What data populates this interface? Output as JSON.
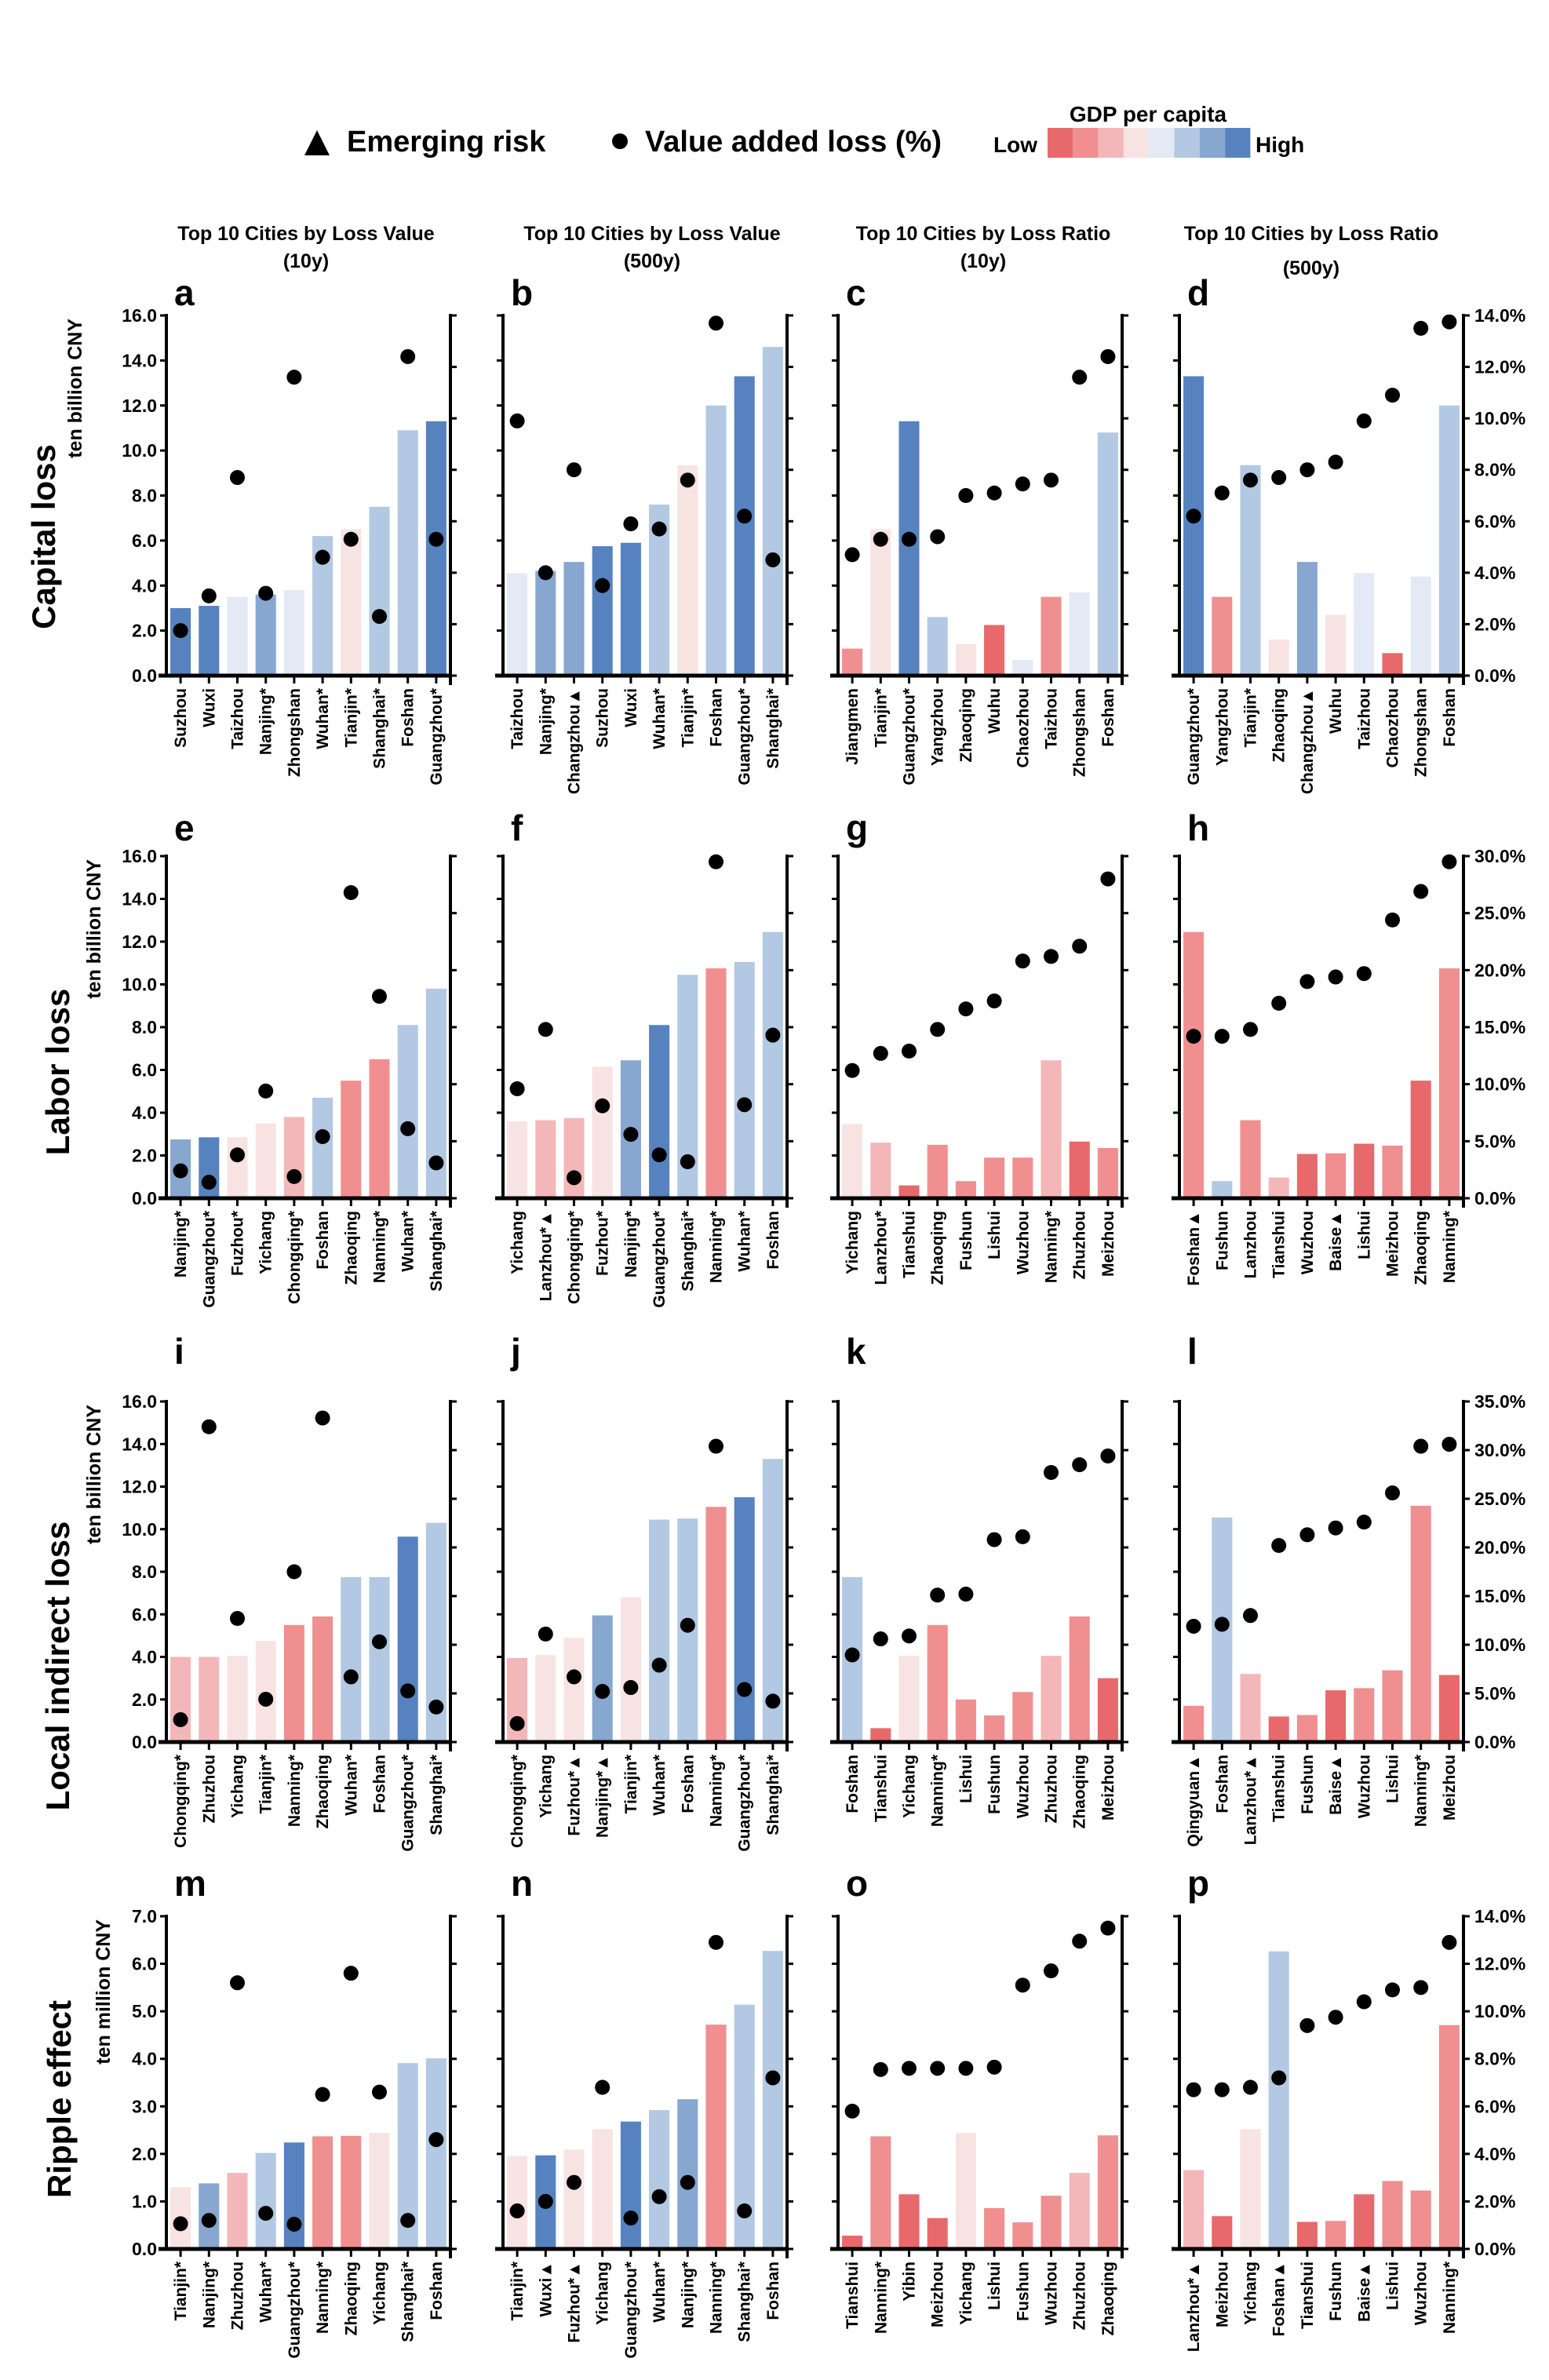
{
  "legend": {
    "emerging_risk_label": "Emerging risk",
    "emerging_risk_symbol": "▲",
    "dot_label": "Value added loss (%)",
    "dot_symbol": "●",
    "gdp_title": "GDP per capita",
    "low": "Low",
    "high": "High",
    "palette": [
      "#e8696b",
      "#ef8f90",
      "#f4b7b9",
      "#f8e3e3",
      "#e3e9f5",
      "#b3c8e2",
      "#87a7d0",
      "#5683bf"
    ]
  },
  "column_titles": [
    {
      "line1": "Top 10 Cities by Loss Value",
      "line2": "(10y)"
    },
    {
      "line1": "Top 10 Cities by Loss Value",
      "line2": "(500y)"
    },
    {
      "line1": "Top 10 Cities by Loss Ratio",
      "line2": "(10y)"
    },
    {
      "line1": "Top 10 Cities by Loss Ratio",
      "line2": "(500y)"
    }
  ],
  "rows": [
    {
      "title": "Capital loss",
      "unit": "ten billion CNY",
      "ylim": [
        0,
        16
      ],
      "yticks": [
        "0.0",
        "2.0",
        "4.0",
        "6.0",
        "8.0",
        "10.0",
        "12.0",
        "14.0",
        "16.0"
      ],
      "y2lim": [
        0,
        14
      ],
      "y2ticks": [
        "0.0%",
        "2.0%",
        "4.0%",
        "6.0%",
        "8.0%",
        "10.0%",
        "12.0%",
        "14.0%"
      ]
    },
    {
      "title": "Labor loss",
      "unit": "ten billion CNY",
      "ylim": [
        0,
        16
      ],
      "yticks": [
        "0.0",
        "2.0",
        "4.0",
        "6.0",
        "8.0",
        "10.0",
        "12.0",
        "14.0",
        "16.0"
      ],
      "y2lim": [
        0,
        30
      ],
      "y2ticks": [
        "0.0%",
        "5.0%",
        "10.0%",
        "15.0%",
        "20.0%",
        "25.0%",
        "30.0%"
      ]
    },
    {
      "title": "Local indirect loss",
      "unit": "ten billion CNY",
      "ylim": [
        0,
        16
      ],
      "yticks": [
        "0.0",
        "2.0",
        "4.0",
        "6.0",
        "8.0",
        "10.0",
        "12.0",
        "14.0",
        "16.0"
      ],
      "y2lim": [
        0,
        35
      ],
      "y2ticks": [
        "0.0%",
        "5.0%",
        "10.0%",
        "15.0%",
        "20.0%",
        "25.0%",
        "30.0%",
        "35.0%"
      ]
    },
    {
      "title": "Ripple effect",
      "unit": "ten million CNY",
      "ylim": [
        0,
        7
      ],
      "yticks": [
        "0.0",
        "1.0",
        "2.0",
        "3.0",
        "4.0",
        "5.0",
        "6.0",
        "7.0"
      ],
      "y2lim": [
        0,
        14
      ],
      "y2ticks": [
        "0.0%",
        "2.0%",
        "4.0%",
        "6.0%",
        "8.0%",
        "10.0%",
        "12.0%",
        "14.0%"
      ]
    }
  ],
  "chart_data": [
    {
      "panel": "a",
      "type": "bar+scatter",
      "categories": [
        "Suzhou",
        "Wuxi",
        "Taizhou",
        "Nanjing*",
        "Zhongshan",
        "Wuhan*",
        "Tianjin*",
        "Shanghai*",
        "Foshan",
        "Guangzhou*"
      ],
      "bar_values": [
        3.0,
        3.1,
        3.5,
        3.6,
        3.8,
        6.2,
        6.5,
        7.5,
        10.9,
        11.3
      ],
      "dot_values_pct": [
        1.75,
        3.1,
        7.7,
        3.2,
        11.6,
        4.6,
        5.3,
        2.3,
        12.4,
        5.3
      ],
      "gdp_level": [
        7,
        7,
        4,
        6,
        4,
        5,
        3,
        5,
        5,
        7
      ]
    },
    {
      "panel": "b",
      "type": "bar+scatter",
      "categories": [
        "Taizhou",
        "Nanjing*",
        "Changzhou▲",
        "Suzhou",
        "Wuxi",
        "Wuhan*",
        "Tianjin*",
        "Foshan",
        "Guangzhou*",
        "Shanghai*"
      ],
      "bar_values": [
        4.55,
        4.65,
        5.05,
        5.75,
        5.9,
        7.6,
        9.35,
        12.0,
        13.3,
        14.6
      ],
      "dot_values_pct": [
        9.9,
        4.0,
        8.0,
        3.5,
        5.9,
        5.7,
        7.6,
        13.7,
        6.2,
        4.5
      ],
      "gdp_level": [
        4,
        6,
        6,
        7,
        7,
        5,
        3,
        5,
        7,
        5
      ]
    },
    {
      "panel": "c",
      "type": "bar+scatter",
      "categories": [
        "Jiangmen",
        "Tianjin*",
        "Guangzhou*",
        "Yangzhou",
        "Zhaoqing",
        "Wuhu",
        "Chaozhou",
        "Taizhou",
        "Zhongshan",
        "Foshan"
      ],
      "bar_values": [
        1.2,
        6.5,
        11.3,
        2.6,
        1.4,
        2.25,
        0.7,
        3.5,
        3.7,
        10.8
      ],
      "dot_values_pct": [
        4.7,
        5.3,
        5.3,
        5.4,
        7.0,
        7.1,
        7.45,
        7.6,
        11.6,
        12.4
      ],
      "gdp_level": [
        1,
        3,
        7,
        5,
        3,
        0,
        4,
        1,
        4,
        5
      ]
    },
    {
      "panel": "d",
      "type": "bar+scatter",
      "categories": [
        "Guangzhou*",
        "Yangzhou",
        "Tianjin*",
        "Zhaoqing",
        "Changzhou▲",
        "Wuhu",
        "Taizhou",
        "Chaozhou",
        "Zhongshan",
        "Foshan"
      ],
      "bar_values": [
        13.3,
        3.5,
        9.35,
        1.6,
        5.05,
        2.7,
        4.55,
        1.0,
        4.4,
        12.0
      ],
      "dot_values_pct": [
        6.2,
        7.1,
        7.6,
        7.7,
        8.0,
        8.3,
        9.9,
        10.9,
        13.5,
        13.75
      ],
      "gdp_level": [
        7,
        1,
        5,
        3,
        6,
        3,
        4,
        0,
        4,
        5
      ]
    },
    {
      "panel": "e",
      "type": "bar+scatter",
      "categories": [
        "Nanjing*",
        "Guangzhou*",
        "Fuzhou*",
        "Yichang",
        "Chongqing*",
        "Foshan",
        "Zhaoqing",
        "Nanning*",
        "Wuhan*",
        "Shanghai*"
      ],
      "bar_values": [
        2.75,
        2.85,
        2.85,
        3.5,
        3.8,
        4.7,
        5.5,
        6.5,
        8.1,
        9.8
      ],
      "dot_values_pct": [
        2.4,
        1.4,
        3.8,
        9.4,
        1.9,
        5.4,
        26.8,
        17.7,
        6.1,
        3.1
      ],
      "gdp_level": [
        6,
        7,
        3,
        3,
        2,
        5,
        1,
        1,
        5,
        5
      ]
    },
    {
      "panel": "f",
      "type": "bar+scatter",
      "categories": [
        "Yichang",
        "Lanzhou*▲",
        "Chongqing*",
        "Fuzhou*",
        "Nanjing*",
        "Guangzhou*",
        "Shanghai*",
        "Nanning*",
        "Wuhan*",
        "Foshan"
      ],
      "bar_values": [
        3.6,
        3.65,
        3.75,
        6.15,
        6.45,
        8.1,
        10.45,
        10.75,
        11.05,
        12.45
      ],
      "dot_values_pct": [
        9.6,
        14.8,
        1.8,
        8.1,
        5.6,
        3.8,
        3.2,
        29.5,
        8.2,
        14.3
      ],
      "gdp_level": [
        3,
        2,
        2,
        3,
        6,
        7,
        5,
        1,
        5,
        5
      ]
    },
    {
      "panel": "g",
      "type": "bar+scatter",
      "categories": [
        "Yichang",
        "Lanzhou*",
        "Tianshui",
        "Zhaoqing",
        "Fushun",
        "Lishui",
        "Wuzhou",
        "Nanning*",
        "Zhuzhou",
        "Meizhou"
      ],
      "bar_values": [
        3.47,
        2.6,
        0.6,
        2.5,
        0.8,
        1.9,
        1.9,
        6.45,
        2.65,
        2.35
      ],
      "dot_values_pct": [
        11.2,
        12.7,
        12.9,
        14.8,
        16.6,
        17.3,
        20.8,
        21.2,
        22.1,
        28.0
      ],
      "gdp_level": [
        3,
        2,
        0,
        1,
        1,
        1,
        1,
        2,
        0,
        1
      ]
    },
    {
      "panel": "h",
      "type": "bar+scatter",
      "categories": [
        "Foshan▲",
        "Fushun",
        "Lanzhou",
        "Tianshui",
        "Wuzhou",
        "Baise▲",
        "Lishui",
        "Meizhou",
        "Zhaoqing",
        "Nanning*"
      ],
      "bar_values": [
        12.45,
        0.8,
        3.65,
        0.97,
        2.07,
        2.1,
        2.55,
        2.46,
        5.5,
        10.75
      ],
      "dot_values_pct": [
        14.2,
        14.2,
        14.8,
        17.1,
        19.0,
        19.4,
        19.7,
        24.4,
        26.9,
        29.5
      ],
      "gdp_level": [
        1,
        5,
        1,
        2,
        0,
        1,
        0,
        1,
        0,
        1
      ]
    },
    {
      "panel": "i",
      "type": "bar+scatter",
      "categories": [
        "Chongqing*",
        "Zhuzhou",
        "Yichang",
        "Tianjin*",
        "Nanning*",
        "Zhaoqing",
        "Wuhan*",
        "Foshan",
        "Guangzhou*",
        "Shanghai*"
      ],
      "bar_values": [
        4.0,
        4.0,
        4.05,
        4.75,
        5.5,
        5.9,
        7.75,
        7.75,
        9.65,
        10.3
      ],
      "dot_values_pct": [
        2.3,
        32.4,
        12.7,
        4.4,
        17.5,
        33.3,
        6.7,
        10.3,
        5.25,
        3.6
      ],
      "gdp_level": [
        2,
        2,
        3,
        3,
        1,
        1,
        5,
        5,
        7,
        5
      ]
    },
    {
      "panel": "j",
      "type": "bar+scatter",
      "categories": [
        "Chongqing*",
        "Yichang",
        "Fuzhou*▲",
        "Nanjing*▲",
        "Tianjin*",
        "Wuhan*",
        "Foshan",
        "Nanning*",
        "Guangzhou*",
        "Shanghai*"
      ],
      "bar_values": [
        3.95,
        4.1,
        4.9,
        5.95,
        6.8,
        10.45,
        10.5,
        11.05,
        11.5,
        13.3
      ],
      "dot_values_pct": [
        1.9,
        11.1,
        6.7,
        5.2,
        5.6,
        7.9,
        12.0,
        30.4,
        5.4,
        4.2
      ],
      "gdp_level": [
        2,
        3,
        3,
        6,
        3,
        5,
        5,
        1,
        7,
        5
      ]
    },
    {
      "panel": "k",
      "type": "bar+scatter",
      "categories": [
        "Foshan",
        "Tianshui",
        "Yichang",
        "Nanning*",
        "Lishui",
        "Fushun",
        "Wuzhou",
        "Zhuzhou",
        "Zhaoqing",
        "Meizhou"
      ],
      "bar_values": [
        7.75,
        0.65,
        4.05,
        5.5,
        2.0,
        1.25,
        2.35,
        4.05,
        5.9,
        3.0
      ],
      "dot_values_pct": [
        8.95,
        10.6,
        10.9,
        15.1,
        15.2,
        20.8,
        21.1,
        27.7,
        28.5,
        29.4
      ],
      "gdp_level": [
        5,
        0,
        3,
        1,
        1,
        1,
        1,
        2,
        1,
        0
      ]
    },
    {
      "panel": "l",
      "type": "bar+scatter",
      "categories": [
        "Qingyuan▲",
        "Foshan",
        "Lanzhou*▲",
        "Tianshui",
        "Fushun",
        "Baise▲",
        "Wuzhou",
        "Lishui",
        "Nanning*",
        "Meizhou"
      ],
      "bar_values": [
        1.7,
        10.55,
        3.2,
        1.2,
        1.27,
        2.43,
        2.53,
        3.37,
        11.1,
        3.15
      ],
      "dot_values_pct": [
        11.9,
        12.1,
        13.0,
        20.2,
        21.3,
        22.0,
        22.6,
        25.6,
        30.4,
        30.6
      ],
      "gdp_level": [
        1,
        5,
        2,
        0,
        1,
        0,
        1,
        1,
        1,
        0
      ]
    },
    {
      "panel": "m",
      "type": "bar+scatter",
      "categories": [
        "Tianjin*",
        "Nanjing*",
        "Zhuzhou",
        "Wuhan*",
        "Guangzhou*",
        "Nanning*",
        "Zhaoqing",
        "Yichang",
        "Shanghai*",
        "Foshan"
      ],
      "bar_values": [
        1.3,
        1.38,
        1.6,
        2.02,
        2.24,
        2.37,
        2.38,
        2.44,
        3.91,
        4.01
      ],
      "dot_values_pct": [
        1.06,
        1.2,
        11.2,
        1.5,
        1.04,
        6.5,
        11.6,
        6.6,
        1.2,
        4.6
      ],
      "gdp_level": [
        3,
        6,
        2,
        5,
        7,
        1,
        1,
        3,
        5,
        5
      ]
    },
    {
      "panel": "n",
      "type": "bar+scatter",
      "categories": [
        "Tianjin*",
        "Wuxi▲",
        "Fuzhou*▲",
        "Yichang",
        "Guangzhou*",
        "Wuhan*",
        "Nanjing*",
        "Nanning*",
        "Shanghai*",
        "Foshan"
      ],
      "bar_values": [
        1.96,
        1.97,
        2.09,
        2.52,
        2.68,
        2.92,
        3.15,
        4.72,
        5.14,
        6.27
      ],
      "dot_values_pct": [
        1.6,
        2.0,
        2.8,
        6.8,
        1.3,
        2.2,
        2.8,
        12.9,
        1.6,
        7.2
      ],
      "gdp_level": [
        3,
        7,
        3,
        3,
        7,
        5,
        6,
        1,
        5,
        5
      ]
    },
    {
      "panel": "o",
      "type": "bar+scatter",
      "categories": [
        "Tianshui",
        "Nanning*",
        "Yibin",
        "Meizhou",
        "Yichang",
        "Lishui",
        "Fushun",
        "Wuzhou",
        "Zhuzhou",
        "Zhaoqing"
      ],
      "bar_values": [
        0.28,
        2.37,
        1.15,
        0.65,
        2.44,
        0.86,
        0.56,
        1.12,
        1.6,
        2.39
      ],
      "dot_values_pct": [
        5.8,
        7.55,
        7.6,
        7.6,
        7.6,
        7.65,
        11.1,
        11.7,
        12.95,
        13.5
      ],
      "gdp_level": [
        0,
        1,
        0,
        0,
        3,
        1,
        1,
        1,
        2,
        1
      ]
    },
    {
      "panel": "p",
      "type": "bar+scatter",
      "categories": [
        "Lanzhou*▲",
        "Meizhou",
        "Yichang",
        "Foshan▲",
        "Tianshui",
        "Fushun",
        "Baise▲",
        "Lishui",
        "Wuzhou",
        "Nanning*"
      ],
      "bar_values": [
        1.66,
        0.69,
        2.52,
        6.26,
        0.57,
        0.59,
        1.15,
        1.43,
        1.23,
        4.71
      ],
      "dot_values_pct": [
        6.7,
        6.7,
        6.8,
        7.2,
        9.4,
        9.75,
        10.4,
        10.9,
        11.0,
        12.9
      ],
      "gdp_level": [
        2,
        0,
        3,
        5,
        0,
        1,
        0,
        1,
        1,
        1
      ]
    }
  ]
}
